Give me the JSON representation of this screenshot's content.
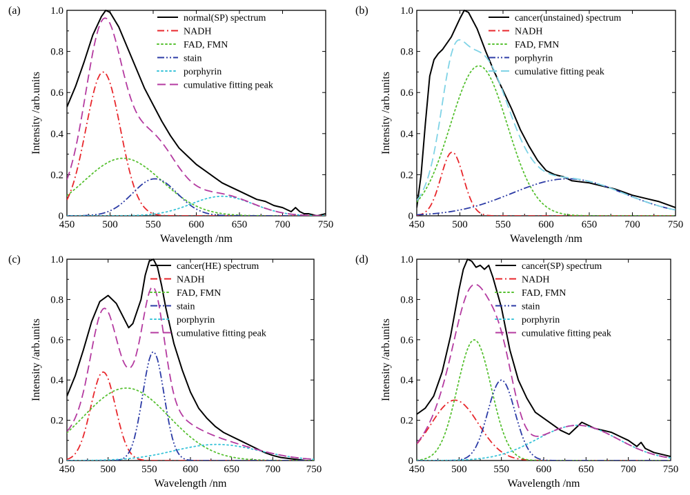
{
  "chart_data": [
    {
      "type": "line",
      "panel_label": "(a)",
      "xlabel": "Wavelength /nm",
      "ylabel": "Intensity /arb.units",
      "xlim": [
        450,
        750
      ],
      "ylim": [
        0,
        1.0
      ],
      "xticks": [
        "450",
        "500",
        "550",
        "600",
        "650",
        "700",
        "750"
      ],
      "yticks": [
        "0",
        "0.2",
        "0.4",
        "0.6",
        "0.8",
        "1.0"
      ],
      "legend_position": "top-right",
      "series": [
        {
          "name": "normal(SP) spectrum",
          "style": "solid",
          "color": "#000000",
          "x": [
            450,
            460,
            470,
            480,
            490,
            495,
            500,
            510,
            520,
            530,
            540,
            550,
            560,
            570,
            580,
            590,
            600,
            610,
            620,
            630,
            640,
            650,
            660,
            670,
            680,
            690,
            700,
            710,
            715,
            720,
            725,
            730,
            740,
            750
          ],
          "y": [
            0.53,
            0.63,
            0.75,
            0.88,
            0.97,
            1.0,
            0.99,
            0.92,
            0.82,
            0.72,
            0.62,
            0.54,
            0.46,
            0.39,
            0.33,
            0.29,
            0.25,
            0.22,
            0.19,
            0.16,
            0.14,
            0.12,
            0.1,
            0.08,
            0.07,
            0.05,
            0.04,
            0.02,
            0.04,
            0.02,
            0.01,
            0.01,
            0.0,
            0.01
          ]
        },
        {
          "name": "NADH",
          "style": "dashdot",
          "color": "#e8262b",
          "gauss": [
            0.7,
            492,
            20
          ]
        },
        {
          "name": "FAD, FMN",
          "style": "dotted",
          "color": "#55c02f",
          "gauss": [
            0.28,
            515,
            45
          ]
        },
        {
          "name": "stain",
          "style": "dashdotdot",
          "color": "#2b3aa5",
          "gauss": [
            0.18,
            552,
            26
          ]
        },
        {
          "name": "porphyrin",
          "style": "dotted",
          "color": "#38c3d8",
          "gauss": [
            0.095,
            630,
            36
          ]
        },
        {
          "name": "cumulative fitting peak",
          "style": "dashed",
          "color": "#b43aa0",
          "sum": true
        }
      ]
    },
    {
      "type": "line",
      "panel_label": "(b)",
      "xlabel": "Wavelength /nm",
      "ylabel": "Intensity /arb.units",
      "xlim": [
        450,
        750
      ],
      "ylim": [
        0,
        1.0
      ],
      "xticks": [
        "450",
        "500",
        "550",
        "600",
        "650",
        "700",
        "750"
      ],
      "yticks": [
        "0",
        "0.2",
        "0.4",
        "0.6",
        "0.8",
        "1.0"
      ],
      "legend_position": "top-right",
      "series": [
        {
          "name": "cancer(unstained) spectrum",
          "style": "solid",
          "color": "#000000",
          "x": [
            450,
            455,
            460,
            465,
            470,
            475,
            480,
            490,
            500,
            505,
            510,
            520,
            530,
            540,
            550,
            560,
            570,
            580,
            590,
            600,
            610,
            620,
            630,
            640,
            650,
            660,
            670,
            680,
            690,
            700,
            710,
            720,
            730,
            740,
            750
          ],
          "y": [
            0.04,
            0.2,
            0.45,
            0.68,
            0.76,
            0.79,
            0.81,
            0.87,
            0.96,
            1.0,
            0.99,
            0.91,
            0.8,
            0.7,
            0.61,
            0.52,
            0.42,
            0.34,
            0.27,
            0.22,
            0.2,
            0.19,
            0.17,
            0.165,
            0.16,
            0.15,
            0.14,
            0.13,
            0.115,
            0.1,
            0.09,
            0.08,
            0.07,
            0.055,
            0.04
          ]
        },
        {
          "name": "NADH",
          "style": "dashdot",
          "color": "#e8262b",
          "gauss": [
            0.31,
            491,
            13
          ]
        },
        {
          "name": "FAD, FMN",
          "style": "dotted",
          "color": "#55c02f",
          "gauss": [
            0.73,
            522,
            33
          ]
        },
        {
          "name": "porphyrin",
          "style": "dashdotdot",
          "color": "#2b3aa5",
          "gauss": [
            0.18,
            625,
            65
          ]
        },
        {
          "name": "cumulative fitting peak",
          "style": "dashed",
          "color": "#7fd3e6",
          "sum": true
        }
      ]
    },
    {
      "type": "line",
      "panel_label": "(c)",
      "xlabel": "Wavelength /nm",
      "ylabel": "Intensity /arb.units",
      "xlim": [
        450,
        750
      ],
      "ylim": [
        0,
        1.0
      ],
      "xticks": [
        "450",
        "500",
        "550",
        "600",
        "650",
        "700",
        "750"
      ],
      "yticks": [
        "0",
        "0.2",
        "0.4",
        "0.6",
        "0.8",
        "1.0"
      ],
      "legend_position": "top-right",
      "series": [
        {
          "name": "cancer(HE) spectrum",
          "style": "solid",
          "color": "#000000",
          "x": [
            450,
            460,
            470,
            480,
            490,
            500,
            510,
            520,
            525,
            530,
            540,
            545,
            550,
            555,
            560,
            565,
            570,
            580,
            590,
            600,
            610,
            620,
            630,
            640,
            650,
            660,
            670,
            680,
            690,
            700,
            710,
            720,
            730,
            740,
            750
          ],
          "y": [
            0.32,
            0.42,
            0.55,
            0.69,
            0.79,
            0.82,
            0.78,
            0.7,
            0.66,
            0.68,
            0.8,
            0.92,
            0.99,
            1.0,
            0.96,
            0.87,
            0.76,
            0.58,
            0.45,
            0.34,
            0.26,
            0.21,
            0.17,
            0.14,
            0.12,
            0.1,
            0.08,
            0.06,
            0.04,
            0.025,
            0.015,
            0.01,
            0.005,
            0.0,
            0.0
          ]
        },
        {
          "name": "NADH",
          "style": "dashdot",
          "color": "#e8262b",
          "gauss": [
            0.44,
            494,
            15
          ]
        },
        {
          "name": "FAD, FMN",
          "style": "dotted",
          "color": "#55c02f",
          "gauss": [
            0.36,
            522,
            52
          ]
        },
        {
          "name": "stain",
          "style": "dashdotdot",
          "color": "#2b3aa5",
          "gauss": [
            0.54,
            555,
            13
          ]
        },
        {
          "name": "porphyrin",
          "style": "dotted",
          "color": "#38c3d8",
          "gauss": [
            0.08,
            632,
            52
          ]
        },
        {
          "name": "cumulative fitting peak",
          "style": "dashed",
          "color": "#b43aa0",
          "sum": true
        }
      ]
    },
    {
      "type": "line",
      "panel_label": "(d)",
      "xlabel": "Wavelength /nm",
      "ylabel": "Intensity /arb.units",
      "xlim": [
        450,
        750
      ],
      "ylim": [
        0,
        1.0
      ],
      "xticks": [
        "450",
        "500",
        "550",
        "600",
        "650",
        "700",
        "750"
      ],
      "yticks": [
        "0",
        "0.2",
        "0.4",
        "0.6",
        "0.8",
        "1.0"
      ],
      "legend_position": "top-right",
      "series": [
        {
          "name": "cancer(SP) spectrum",
          "style": "solid",
          "color": "#000000",
          "x": [
            450,
            460,
            470,
            480,
            490,
            500,
            505,
            510,
            515,
            520,
            525,
            530,
            535,
            540,
            550,
            560,
            570,
            580,
            590,
            600,
            610,
            620,
            630,
            640,
            645,
            650,
            660,
            670,
            680,
            690,
            700,
            710,
            715,
            720,
            730,
            740,
            750
          ],
          "y": [
            0.23,
            0.26,
            0.32,
            0.44,
            0.62,
            0.85,
            0.95,
            1.0,
            0.99,
            0.96,
            0.97,
            0.95,
            0.97,
            0.91,
            0.76,
            0.55,
            0.4,
            0.31,
            0.24,
            0.21,
            0.18,
            0.15,
            0.13,
            0.17,
            0.19,
            0.18,
            0.16,
            0.15,
            0.14,
            0.12,
            0.1,
            0.07,
            0.09,
            0.06,
            0.04,
            0.03,
            0.02
          ]
        },
        {
          "name": "NADH",
          "style": "dashdot",
          "color": "#e8262b",
          "gauss": [
            0.3,
            495,
            28
          ]
        },
        {
          "name": "FAD, FMN",
          "style": "dotted",
          "color": "#55c02f",
          "gauss": [
            0.6,
            518,
            20
          ]
        },
        {
          "name": "stain",
          "style": "dashdotdot",
          "color": "#2b3aa5",
          "gauss": [
            0.4,
            550,
            16
          ]
        },
        {
          "name": "porphyrin",
          "style": "dotted",
          "color": "#38c3d8",
          "gauss": [
            0.175,
            640,
            48
          ]
        },
        {
          "name": "cumulative fitting peak",
          "style": "dashed",
          "color": "#b43aa0",
          "sum": true
        }
      ]
    }
  ]
}
